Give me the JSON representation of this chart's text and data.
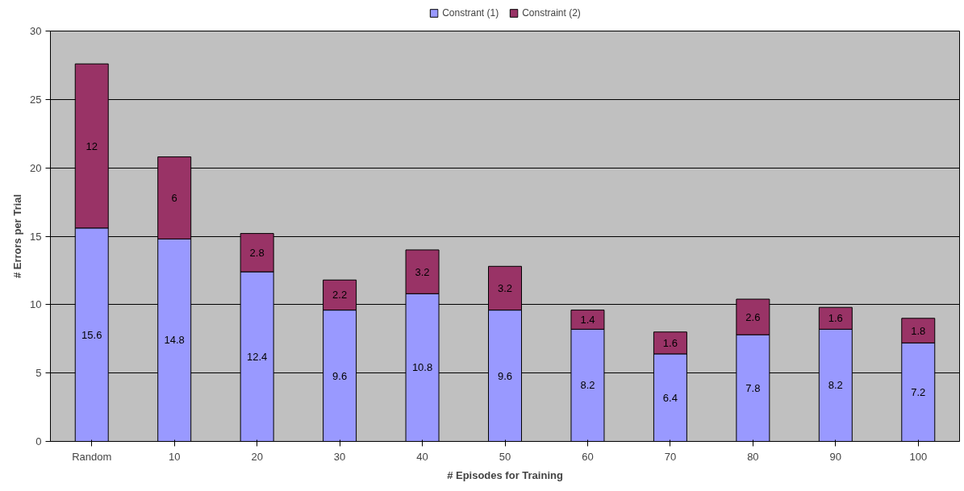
{
  "chart_data": {
    "type": "bar",
    "stacked": true,
    "xlabel": "# Episodes for Training",
    "ylabel": "# Errors per Trial",
    "categories": [
      "Random",
      "10",
      "20",
      "30",
      "40",
      "50",
      "60",
      "70",
      "80",
      "90",
      "100"
    ],
    "series": [
      {
        "name": "Constrant (1)",
        "color": "#9999ff",
        "values": [
          15.6,
          14.8,
          12.4,
          9.6,
          10.8,
          9.6,
          8.2,
          6.4,
          7.8,
          8.2,
          7.2
        ]
      },
      {
        "name": "Constraint (2)",
        "color": "#993366",
        "values": [
          12,
          6,
          2.8,
          2.2,
          3.2,
          3.2,
          1.4,
          1.6,
          2.6,
          1.6,
          1.8
        ]
      }
    ],
    "ylim": [
      0,
      30
    ],
    "yticks": [
      0,
      5,
      10,
      15,
      20,
      25,
      30
    ],
    "grid": "y",
    "legend": "top",
    "data_labels": true
  }
}
